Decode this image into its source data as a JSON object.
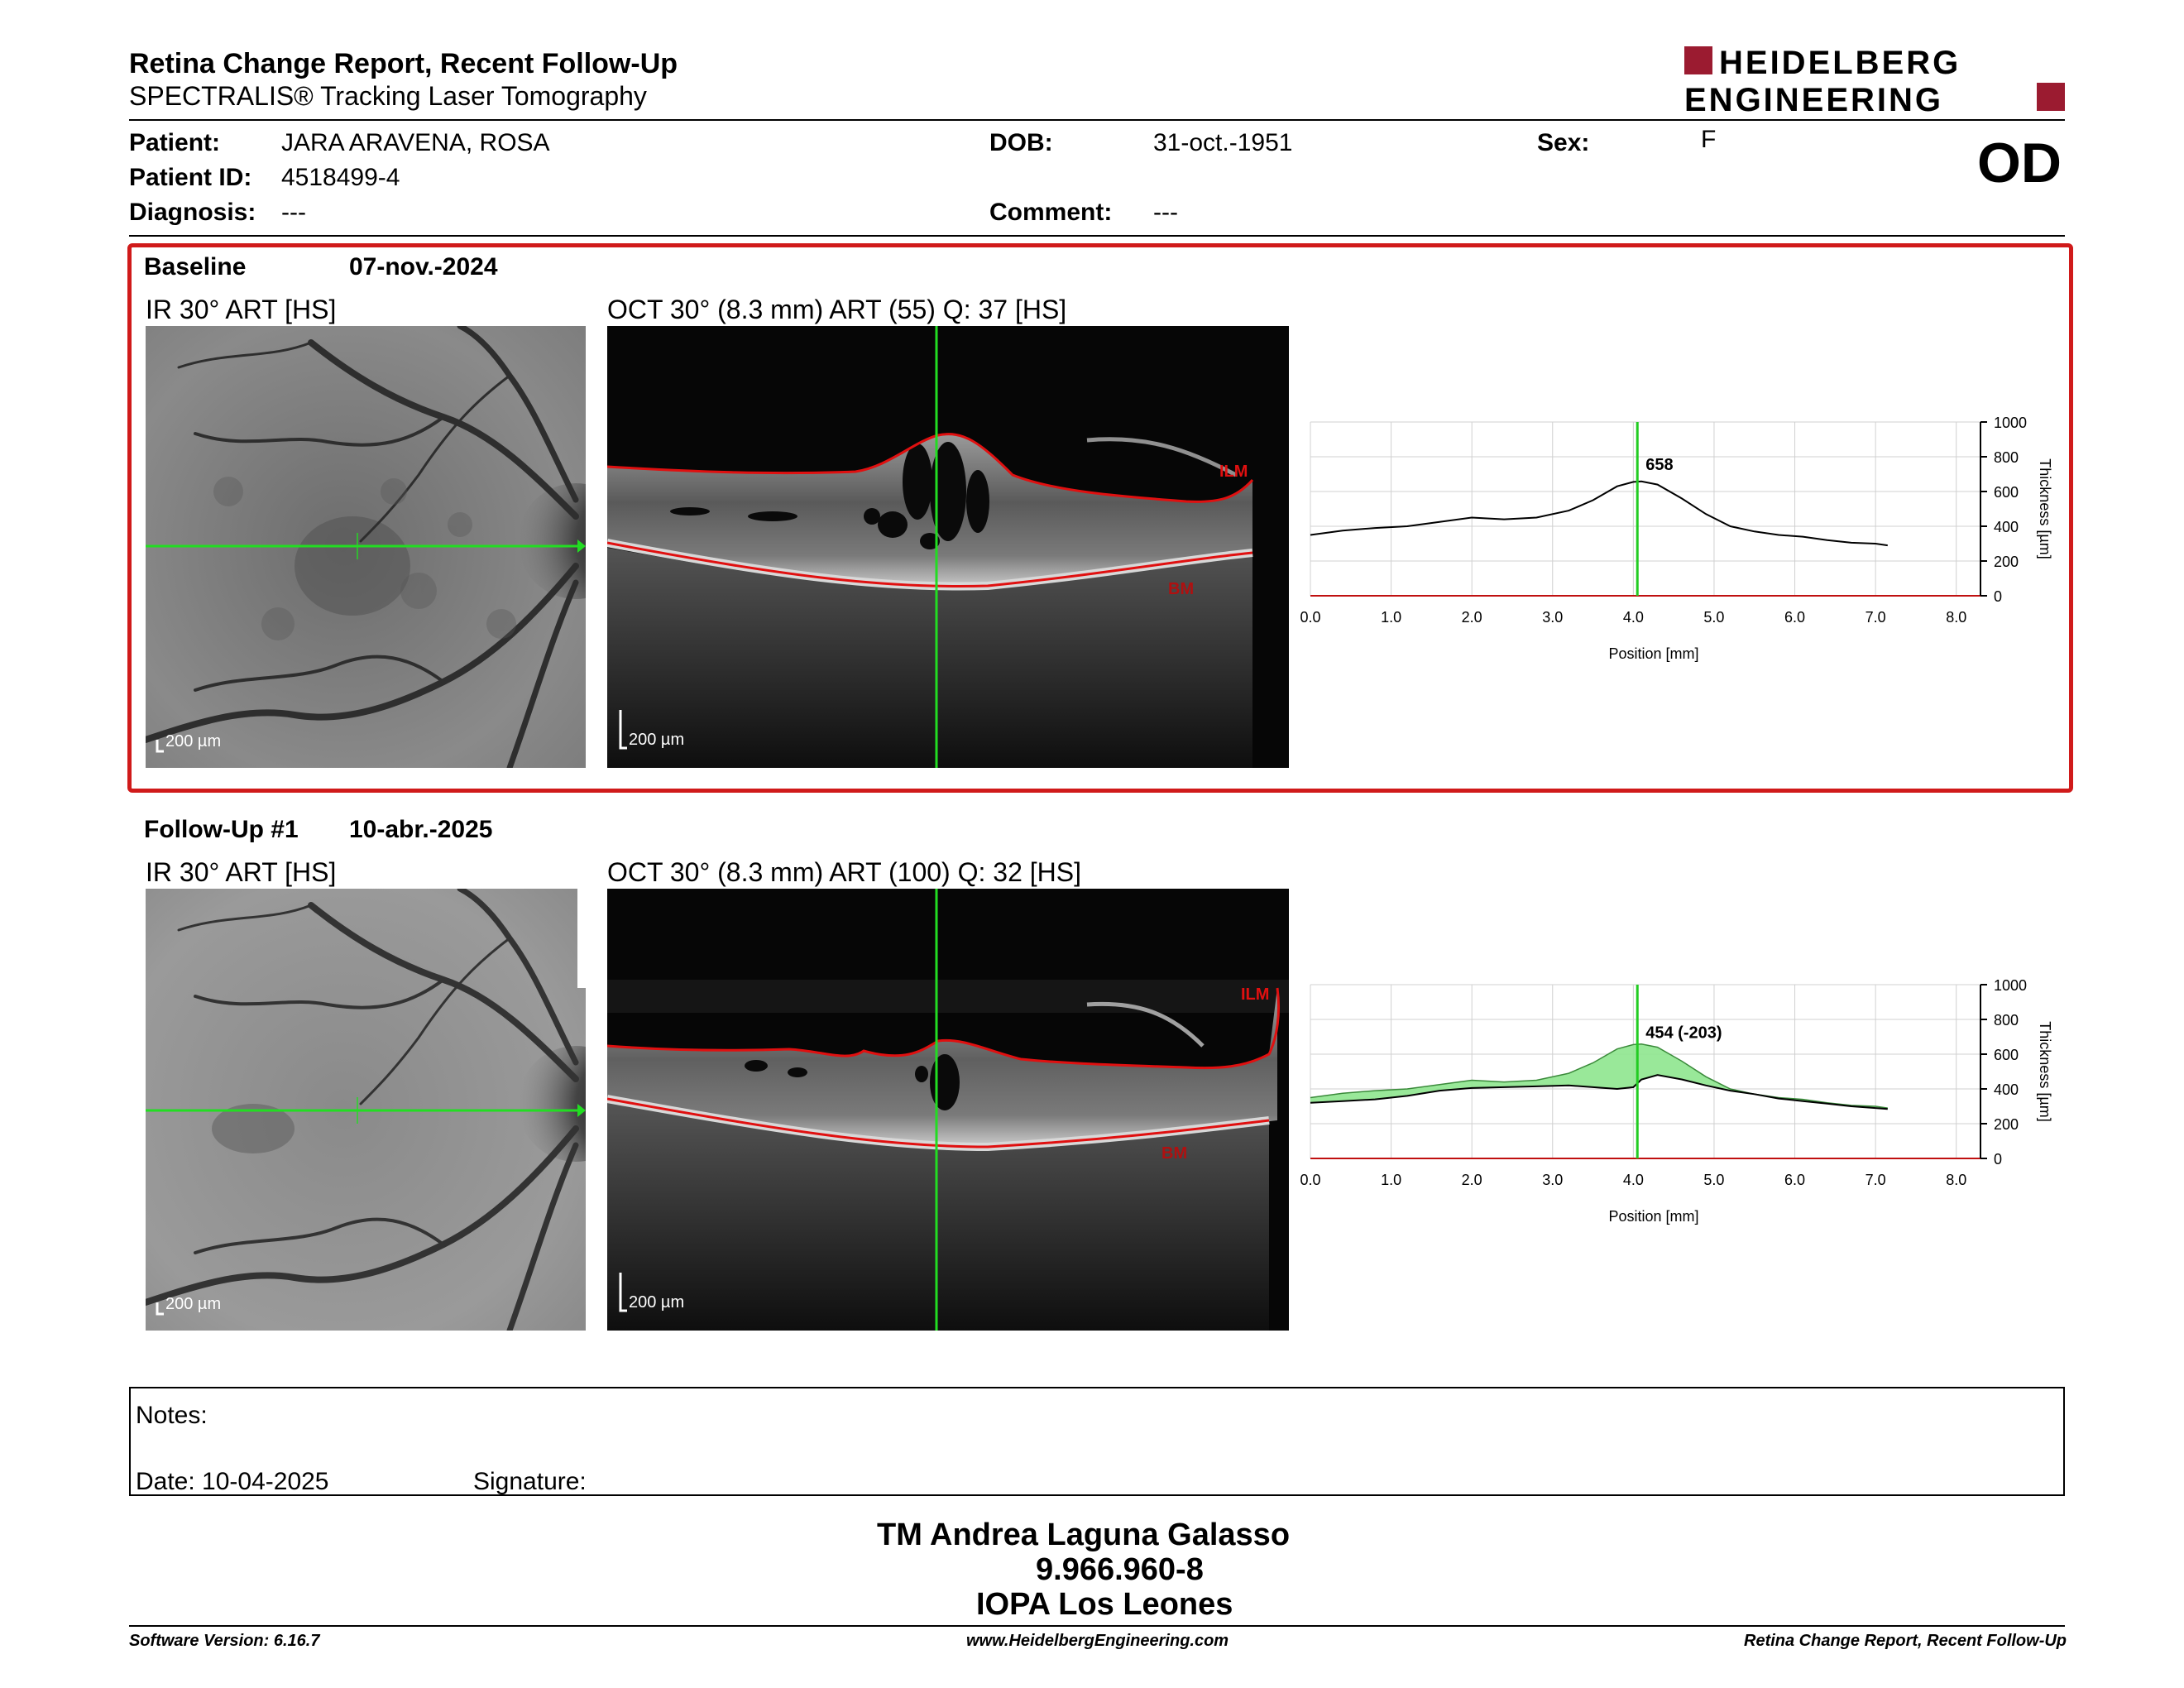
{
  "header": {
    "title": "Retina Change Report, Recent Follow-Up",
    "subtitle": "SPECTRALIS® Tracking Laser Tomography",
    "logo_line1": "HEIDELBERG",
    "logo_line2": "ENGINEERING",
    "eye": "OD"
  },
  "patient": {
    "patient_label": "Patient:",
    "patient_value": "JARA ARAVENA, ROSA",
    "id_label": "Patient ID:",
    "id_value": "4518499-4",
    "diagnosis_label": "Diagnosis:",
    "diagnosis_value": "---",
    "dob_label": "DOB:",
    "dob_value": "31-oct.-1951",
    "comment_label": "Comment:",
    "comment_value": "---",
    "sex_label": "Sex:",
    "sex_value": "F"
  },
  "baseline": {
    "title": "Baseline",
    "date": "07-nov.-2024",
    "ir_caption": "IR 30° ART [HS]",
    "oct_caption": "OCT 30° (8.3 mm) ART (55) Q: 37 [HS]",
    "ir_scale": "200 µm",
    "oct_scale": "200 µm",
    "ilm_label": "ILM",
    "bm_label": "BM"
  },
  "followup": {
    "title": "Follow-Up #1",
    "date": "10-abr.-2025",
    "ir_caption": "IR 30° ART [HS]",
    "oct_caption": "OCT 30° (8.3 mm) ART (100) Q: 32 [HS]",
    "ir_scale": "200 µm",
    "oct_scale": "200 µm",
    "ilm_label": "ILM",
    "bm_label": "BM"
  },
  "chart_data": [
    {
      "type": "line",
      "xlabel": "Position [mm]",
      "ylabel": "Thickness [µm]",
      "xlim": [
        0,
        8.3
      ],
      "ylim": [
        0,
        1000
      ],
      "xticks": [
        "0.0",
        "1.0",
        "2.0",
        "3.0",
        "4.0",
        "5.0",
        "6.0",
        "7.0",
        "8.0"
      ],
      "yticks": [
        "0",
        "200",
        "400",
        "600",
        "800",
        "1000"
      ],
      "grid": true,
      "marker_x": 4.05,
      "marker_label": "658",
      "series": [
        {
          "x": [
            0,
            0.4,
            0.8,
            1.2,
            1.6,
            2.0,
            2.4,
            2.8,
            3.2,
            3.5,
            3.8,
            4.0,
            4.1,
            4.3,
            4.6,
            4.9,
            5.2,
            5.5,
            5.8,
            6.1,
            6.4,
            6.7,
            7.0,
            7.15
          ],
          "y": [
            350,
            375,
            390,
            400,
            425,
            450,
            440,
            450,
            490,
            550,
            630,
            655,
            658,
            640,
            560,
            470,
            400,
            370,
            350,
            340,
            320,
            305,
            300,
            290
          ]
        }
      ]
    },
    {
      "type": "area",
      "xlabel": "Position [mm]",
      "ylabel": "Thickness [µm]",
      "xlim": [
        0,
        8.3
      ],
      "ylim": [
        0,
        1000
      ],
      "xticks": [
        "0.0",
        "1.0",
        "2.0",
        "3.0",
        "4.0",
        "5.0",
        "6.0",
        "7.0",
        "8.0"
      ],
      "yticks": [
        "0",
        "200",
        "400",
        "600",
        "800",
        "1000"
      ],
      "grid": true,
      "marker_x": 4.05,
      "marker_label": "454 (-203)",
      "fill_color": "#8ee58e",
      "series": [
        {
          "x": [
            0,
            0.4,
            0.8,
            1.2,
            1.6,
            2.0,
            2.4,
            2.8,
            3.2,
            3.5,
            3.8,
            4.0,
            4.1,
            4.3,
            4.6,
            4.9,
            5.2,
            5.5,
            5.8,
            6.1,
            6.4,
            6.7,
            7.0,
            7.15
          ],
          "y": [
            350,
            375,
            390,
            400,
            425,
            450,
            440,
            450,
            490,
            550,
            630,
            655,
            658,
            640,
            560,
            470,
            400,
            370,
            350,
            340,
            320,
            305,
            300,
            290
          ]
        },
        {
          "x": [
            0,
            0.4,
            0.8,
            1.2,
            1.6,
            2.0,
            2.4,
            2.8,
            3.2,
            3.5,
            3.8,
            4.0,
            4.1,
            4.3,
            4.6,
            4.9,
            5.2,
            5.5,
            5.8,
            6.1,
            6.4,
            6.7,
            7.0,
            7.15
          ],
          "y": [
            320,
            330,
            340,
            360,
            390,
            405,
            410,
            415,
            420,
            410,
            400,
            410,
            454,
            480,
            455,
            420,
            390,
            370,
            345,
            330,
            315,
            300,
            290,
            285
          ]
        }
      ]
    }
  ],
  "notes": {
    "notes_label": "Notes:",
    "date_label": "Date: 10-04-2025",
    "signature_label": "Signature:"
  },
  "signatory": {
    "name": "TM Andrea Laguna Galasso",
    "id": "9.966.960-8",
    "institution": "IOPA Los Leones"
  },
  "footer": {
    "left": "Software Version: 6.16.7",
    "center": "www.HeidelbergEngineering.com",
    "right": "Retina Change Report, Recent Follow-Up"
  },
  "colors": {
    "accent_red": "#d01a1a",
    "scan_green": "#22dd22",
    "logo_red": "#9b1b30"
  }
}
